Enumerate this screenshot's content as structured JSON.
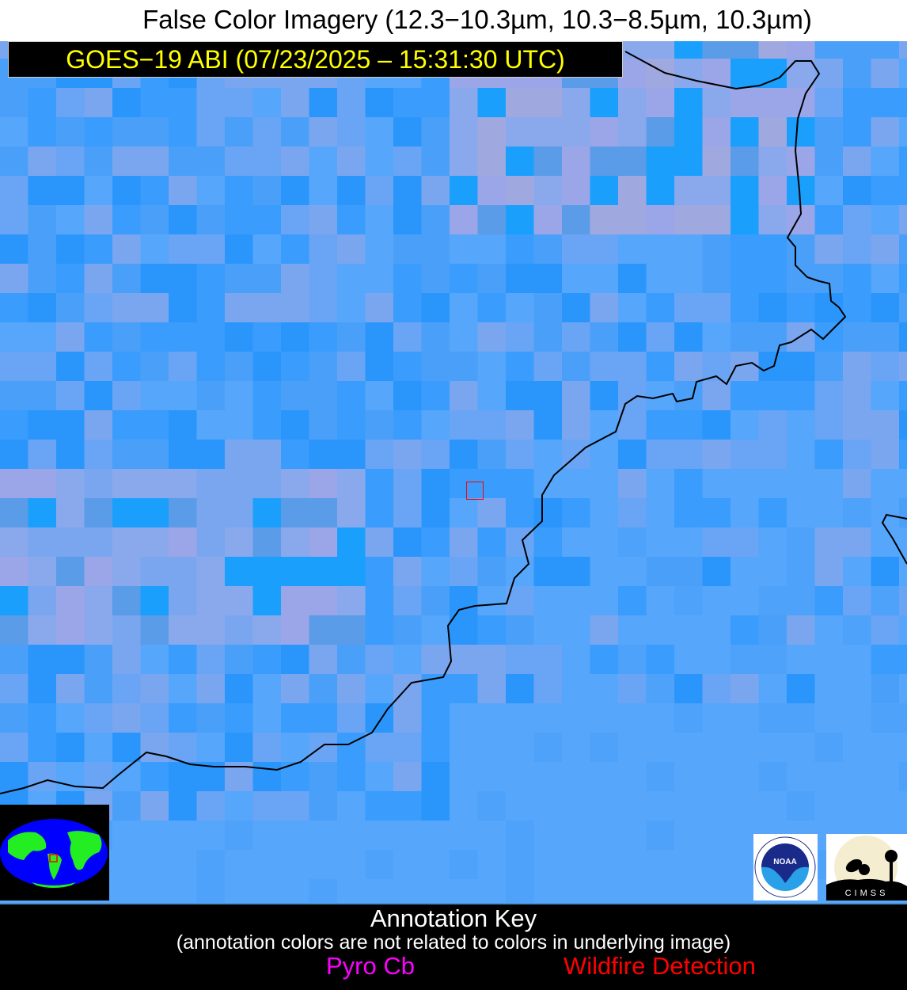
{
  "header": {
    "title": "False Color Imagery (12.3−10.3µm, 10.3−8.5µm, 10.3µm)",
    "subtitle": "GOES−19 ABI (07/23/2025 – 15:31:30 UTC)"
  },
  "colors": {
    "base": "#56a6fc",
    "coastline": "#000000",
    "target_box": "#ff0000",
    "subtitle_text": "#ffff00",
    "pyro_cb": "#ff00ff",
    "wildfire": "#ff0000"
  },
  "logos": {
    "noaa": "NOAA",
    "cimss": "CIMSS"
  },
  "annotation_key": {
    "title": "Annotation Key",
    "note": "(annotation colors are not related to colors in underlying image)",
    "items": [
      {
        "label": "Pyro Cb",
        "color": "#ff00ff"
      },
      {
        "label": "Wildfire Detection",
        "color": "#ff0000"
      }
    ]
  }
}
